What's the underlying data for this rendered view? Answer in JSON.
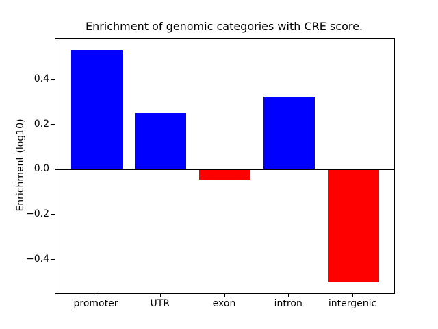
{
  "figure": {
    "background_color": "#ffffff"
  },
  "chart_data": {
    "type": "bar",
    "title": "Enrichment of genomic categories with CRE score.",
    "ylabel": "Enrichment (log10)",
    "xlabel": "",
    "categories": [
      "promoter",
      "UTR",
      "exon",
      "intron",
      "intergenic"
    ],
    "values": [
      0.53,
      0.25,
      -0.045,
      0.325,
      -0.5
    ],
    "bar_colors": [
      "#0000ff",
      "#0000ff",
      "#ff0000",
      "#0000ff",
      "#ff0000"
    ],
    "positive_color": "#0000ff",
    "negative_color": "#ff0000",
    "yticks": [
      0.4,
      0.2,
      0.0,
      -0.2,
      -0.4
    ],
    "ytick_labels": [
      "0.4",
      "0.2",
      "0.0",
      "−0.2",
      "−0.4"
    ],
    "ylim": [
      -0.55,
      0.58
    ],
    "bar_width_frac": 0.8,
    "x_margin_frac": 0.05,
    "zero_line": true,
    "grid": false,
    "legend": null,
    "axis_color": "#000000",
    "text_color": "#000000"
  }
}
